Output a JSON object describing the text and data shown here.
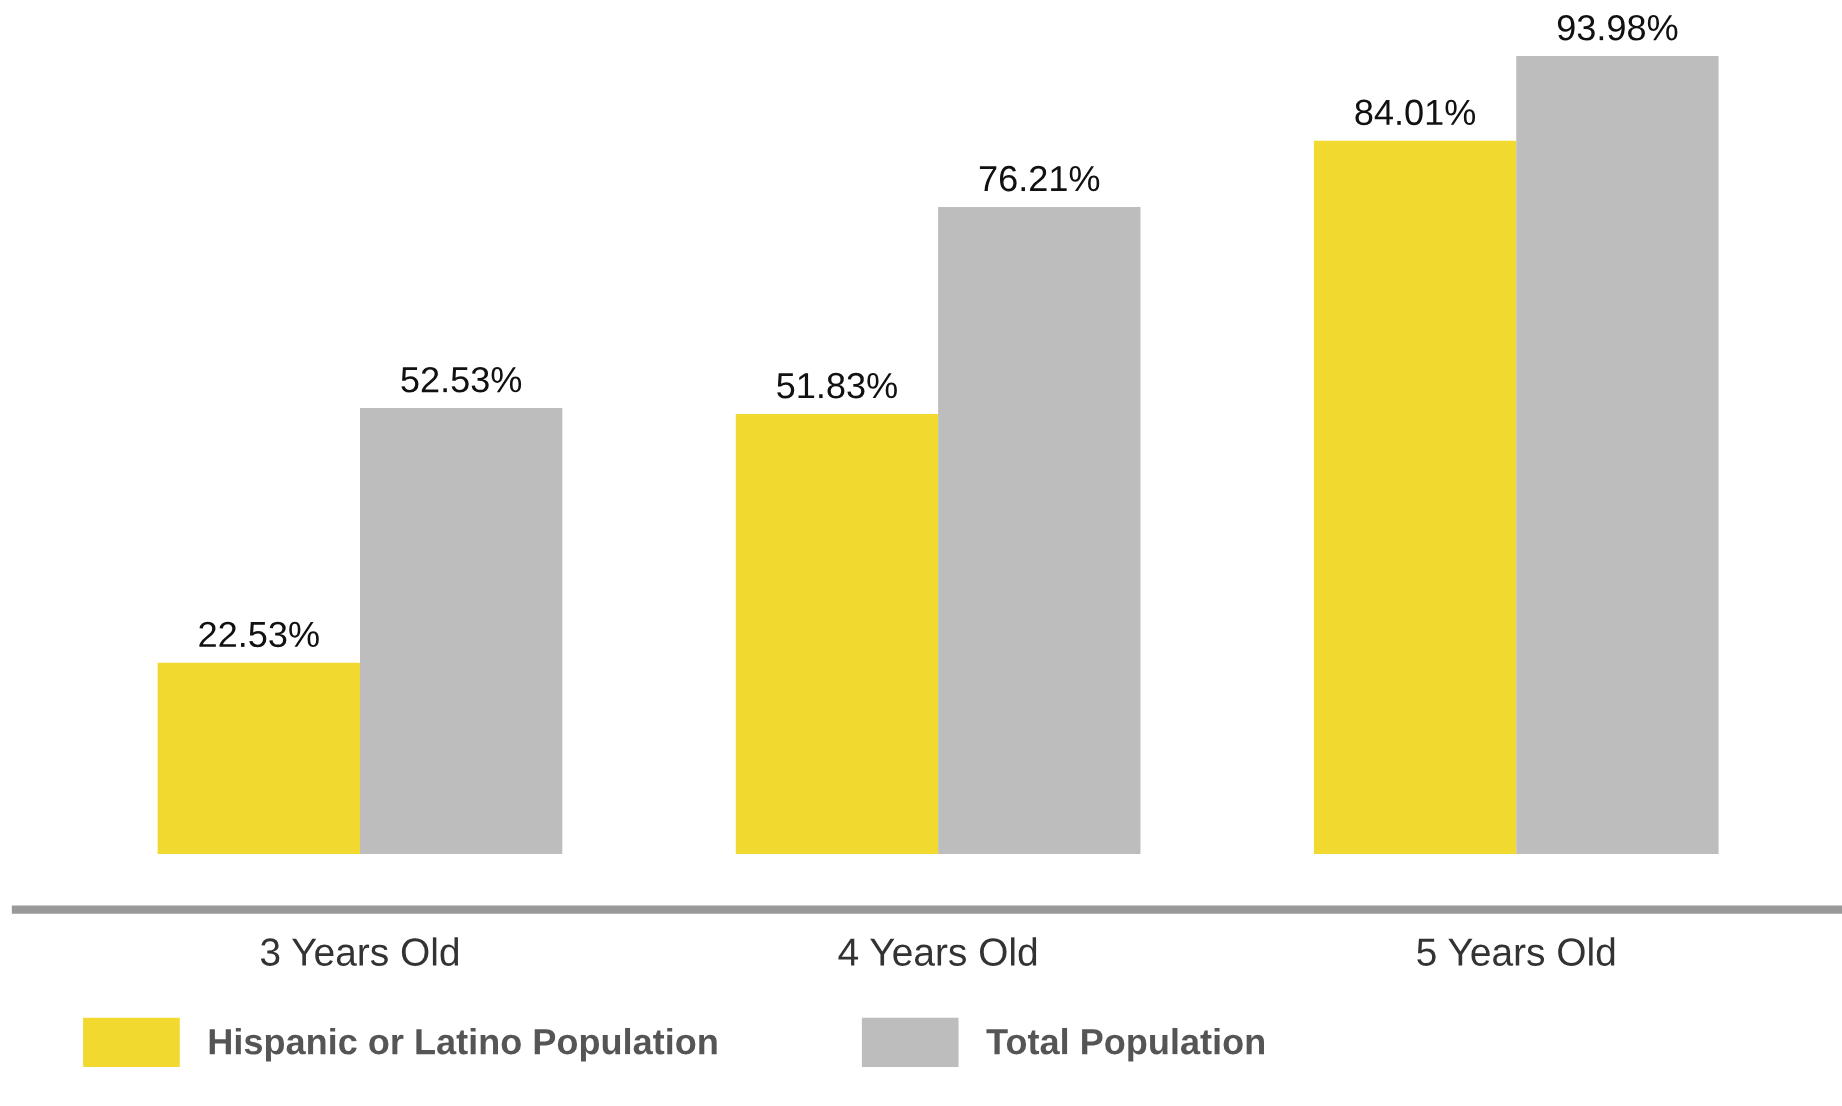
{
  "chart_data": {
    "type": "bar",
    "categories": [
      "3 Years Old",
      "4 Years Old",
      "5 Years Old"
    ],
    "series": [
      {
        "name": "Hispanic or Latino Population",
        "color": "#f2d930",
        "values": [
          22.53,
          51.83,
          84.01
        ],
        "value_labels": [
          "22.53%",
          "51.83%",
          "84.01%"
        ]
      },
      {
        "name": "Total Population",
        "color": "#bdbdbd",
        "values": [
          52.53,
          76.21,
          93.98
        ],
        "value_labels": [
          "52.53%",
          "76.21%",
          "93.98%"
        ]
      }
    ],
    "legend": "bottom left",
    "grid": false
  }
}
